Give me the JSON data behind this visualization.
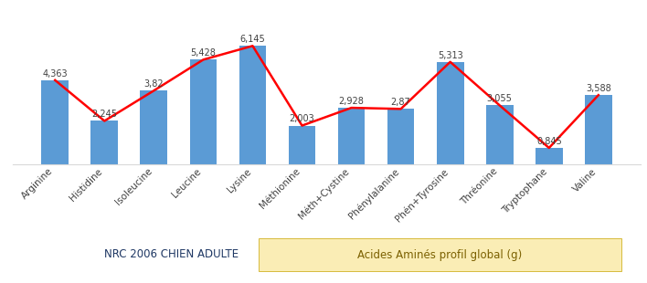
{
  "categories": [
    "Arginine",
    "Histidine",
    "Isoleucine",
    "Leucine",
    "Lysine",
    "Méthionine",
    "Méth+Cystine",
    "Phénylalanine",
    "Phén+Tyrosine",
    "Thréonine",
    "Tryptophane",
    "Valine"
  ],
  "bar_values": [
    4.363,
    2.245,
    3.82,
    5.428,
    6.145,
    2.003,
    2.928,
    2.87,
    5.313,
    3.055,
    0.845,
    3.588
  ],
  "bar_labels": [
    "4,363",
    "2,245",
    "3,82",
    "5,428",
    "6,145",
    "2,003",
    "2,928",
    "2,87",
    "5,313",
    "3,055",
    "0,845",
    "3,588"
  ],
  "bar_color": "#5B9BD5",
  "line_color": "#FF0000",
  "background_color": "#FFFFFF",
  "grid_color": "#D9D9D9",
  "legend_left_text": "NRC 2006 CHIEN ADULTE",
  "legend_right_text": "Acides Aminés profil global (g)",
  "legend_right_color": "#FAEDB5",
  "legend_left_text_color": "#1F3864",
  "legend_right_text_color": "#7B6000",
  "ylim": [
    0,
    7.5
  ],
  "bar_label_fontsize": 7,
  "tick_fontsize": 7.5,
  "legend_fontsize": 8.5
}
